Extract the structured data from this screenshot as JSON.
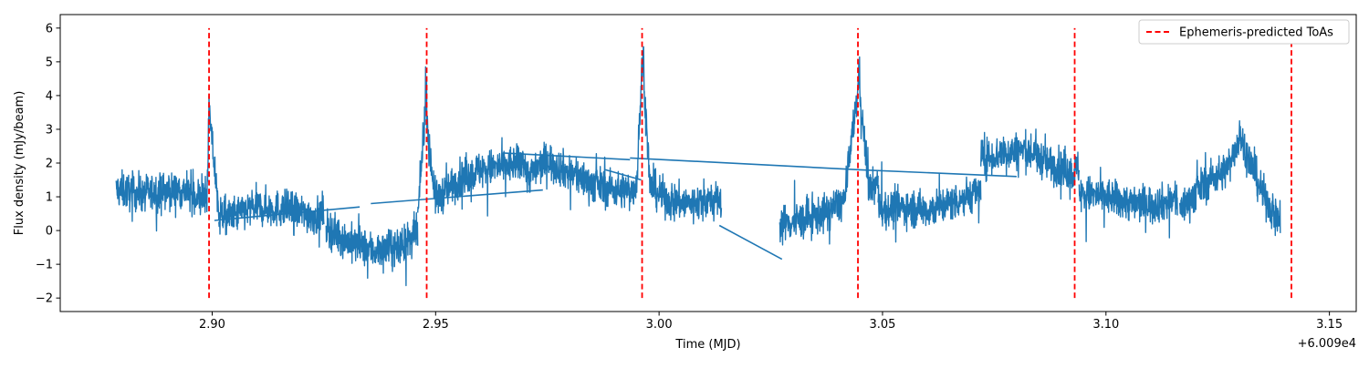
{
  "chart_data": {
    "type": "line",
    "title": "",
    "xlabel": "Time (MJD)",
    "ylabel": "Flux density (mJy/beam)",
    "x_offset_label": "+6.009e4",
    "xlim": [
      2.866,
      3.156
    ],
    "ylim": [
      -2.4,
      6.4
    ],
    "x_ticks": [
      2.9,
      2.95,
      3.0,
      3.05,
      3.1,
      3.15
    ],
    "x_tick_labels": [
      "2.90",
      "2.95",
      "3.00",
      "3.05",
      "3.10",
      "3.15"
    ],
    "y_ticks": [
      -2,
      -1,
      0,
      1,
      2,
      3,
      4,
      5,
      6
    ],
    "y_tick_labels": [
      "−2",
      "−1",
      "0",
      "1",
      "2",
      "3",
      "4",
      "5",
      "6"
    ],
    "grid": false,
    "legend": {
      "position": "top-right",
      "entries": [
        "Ephemeris-predicted ToAs"
      ]
    },
    "series": [
      {
        "color": "#1f77b4",
        "note_points": "base trend; the plotted trace also carries dense noise around it",
        "segments": [
          {
            "x": [
              2.8785,
              2.885,
              2.893,
              2.8988,
              2.8993,
              2.9012,
              2.9015
            ],
            "y": [
              1.2,
              1.1,
              1.2,
              0.9,
              3.6,
              0.9,
              0.3
            ]
          },
          {
            "x": [
              2.9015,
              2.9035,
              2.91,
              2.918,
              2.9235,
              2.925
            ],
            "y": [
              0.5,
              0.4,
              0.7,
              0.6,
              0.4,
              0.6
            ]
          },
          {
            "x": [
              2.9255,
              2.93,
              2.936,
              2.942,
              2.946
            ],
            "y": [
              0.1,
              -0.3,
              -0.6,
              -0.5,
              -0.1
            ]
          },
          {
            "x": [
              2.946,
              2.9477,
              2.948,
              2.9483,
              2.95,
              2.955,
              2.96,
              2.965,
              2.969,
              2.9695
            ],
            "y": [
              0.3,
              3.7,
              3.9,
              2.8,
              0.9,
              1.5,
              1.8,
              1.9,
              2.0,
              2.2
            ]
          },
          {
            "x": [
              2.9695,
              2.9705,
              2.975,
              2.98,
              2.985,
              2.99,
              2.9935
            ],
            "y": [
              2.2,
              1.6,
              2.1,
              1.7,
              1.4,
              1.2,
              1.2
            ]
          },
          {
            "x": [
              2.9935,
              2.995,
              2.9962,
              2.9965,
              2.9968,
              2.998,
              3.002,
              3.007,
              3.011,
              3.014
            ],
            "y": [
              1.1,
              1.4,
              4.9,
              5.2,
              4.0,
              1.3,
              0.9,
              0.8,
              0.9,
              0.8
            ]
          },
          {
            "x": [
              3.027,
              3.032,
              3.037,
              3.0415,
              3.0445,
              3.0448,
              3.0451,
              3.047,
              3.049
            ],
            "y": [
              0.2,
              0.3,
              0.5,
              0.9,
              4.2,
              4.7,
              3.8,
              1.2,
              1.4
            ]
          },
          {
            "x": [
              3.049,
              3.05,
              3.055,
              3.06,
              3.065,
              3.072
            ],
            "y": [
              0.9,
              0.6,
              0.7,
              0.6,
              0.8,
              1.2
            ]
          },
          {
            "x": [
              3.072,
              3.077,
              3.082,
              3.087,
              3.093,
              3.094
            ],
            "y": [
              2.1,
              2.3,
              2.4,
              2.0,
              1.7,
              1.9
            ]
          },
          {
            "x": [
              3.094,
              3.1,
              3.106,
              3.112,
              3.116
            ],
            "y": [
              1.1,
              1.0,
              0.8,
              0.8,
              0.9
            ]
          },
          {
            "x": [
              3.1165,
              3.122,
              3.127,
              3.13,
              3.1315,
              3.135,
              3.139
            ],
            "y": [
              0.6,
              1.4,
              1.8,
              2.8,
              2.3,
              1.1,
              0.2
            ]
          }
        ],
        "connectors": [
          {
            "x": [
              2.9005,
              2.933
            ],
            "y": [
              0.3,
              0.7
            ]
          },
          {
            "x": [
              2.9355,
              2.974
            ],
            "y": [
              0.8,
              1.2
            ]
          },
          {
            "x": [
              2.965,
              2.9935
            ],
            "y": [
              2.3,
              2.1
            ]
          },
          {
            "x": [
              2.9935,
              3.045
            ],
            "y": [
              2.15,
              1.8
            ]
          },
          {
            "x": [
              3.045,
              3.08
            ],
            "y": [
              1.8,
              1.6
            ]
          },
          {
            "x": [
              2.988,
              2.996
            ],
            "y": [
              1.8,
              1.5
            ]
          },
          {
            "x": [
              3.0135,
              3.0275
            ],
            "y": [
              0.15,
              -0.85
            ]
          }
        ]
      },
      {
        "name": "Ephemeris-predicted ToAs",
        "color": "#ff0000",
        "style": "dashed",
        "vlines_x": [
          2.8993,
          2.948,
          2.9962,
          3.0445,
          3.093,
          3.1415
        ],
        "vline_ymin": -2,
        "vline_ymax": 6
      }
    ]
  }
}
